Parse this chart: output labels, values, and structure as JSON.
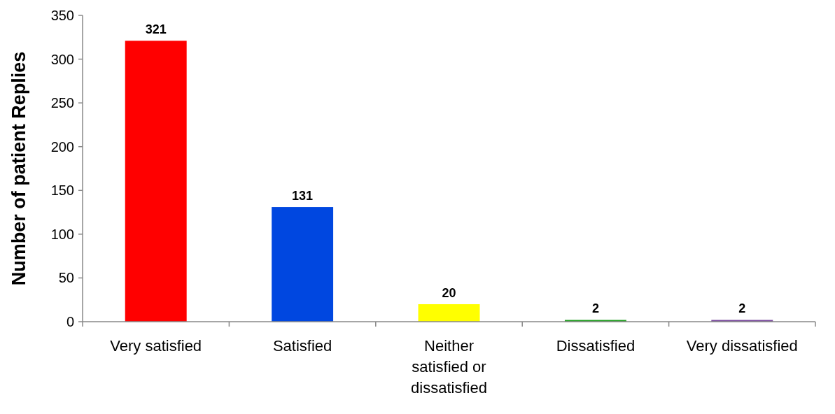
{
  "chart_data": {
    "type": "bar",
    "ylabel": "Number of patient Replies",
    "categories": [
      "Very satisfied",
      "Satisfied",
      "Neither satisfied or dissatisfied",
      "Dissatisfied",
      "Very dissatisfied"
    ],
    "values": [
      321,
      131,
      20,
      2,
      2
    ],
    "colors": [
      "#ff0000",
      "#0047e0",
      "#ffff00",
      "#1f9e1f",
      "#7a4a9e"
    ],
    "ylim": [
      0,
      350
    ],
    "yticks": [
      0,
      50,
      100,
      150,
      200,
      250,
      300,
      350
    ],
    "data_labels": true
  }
}
